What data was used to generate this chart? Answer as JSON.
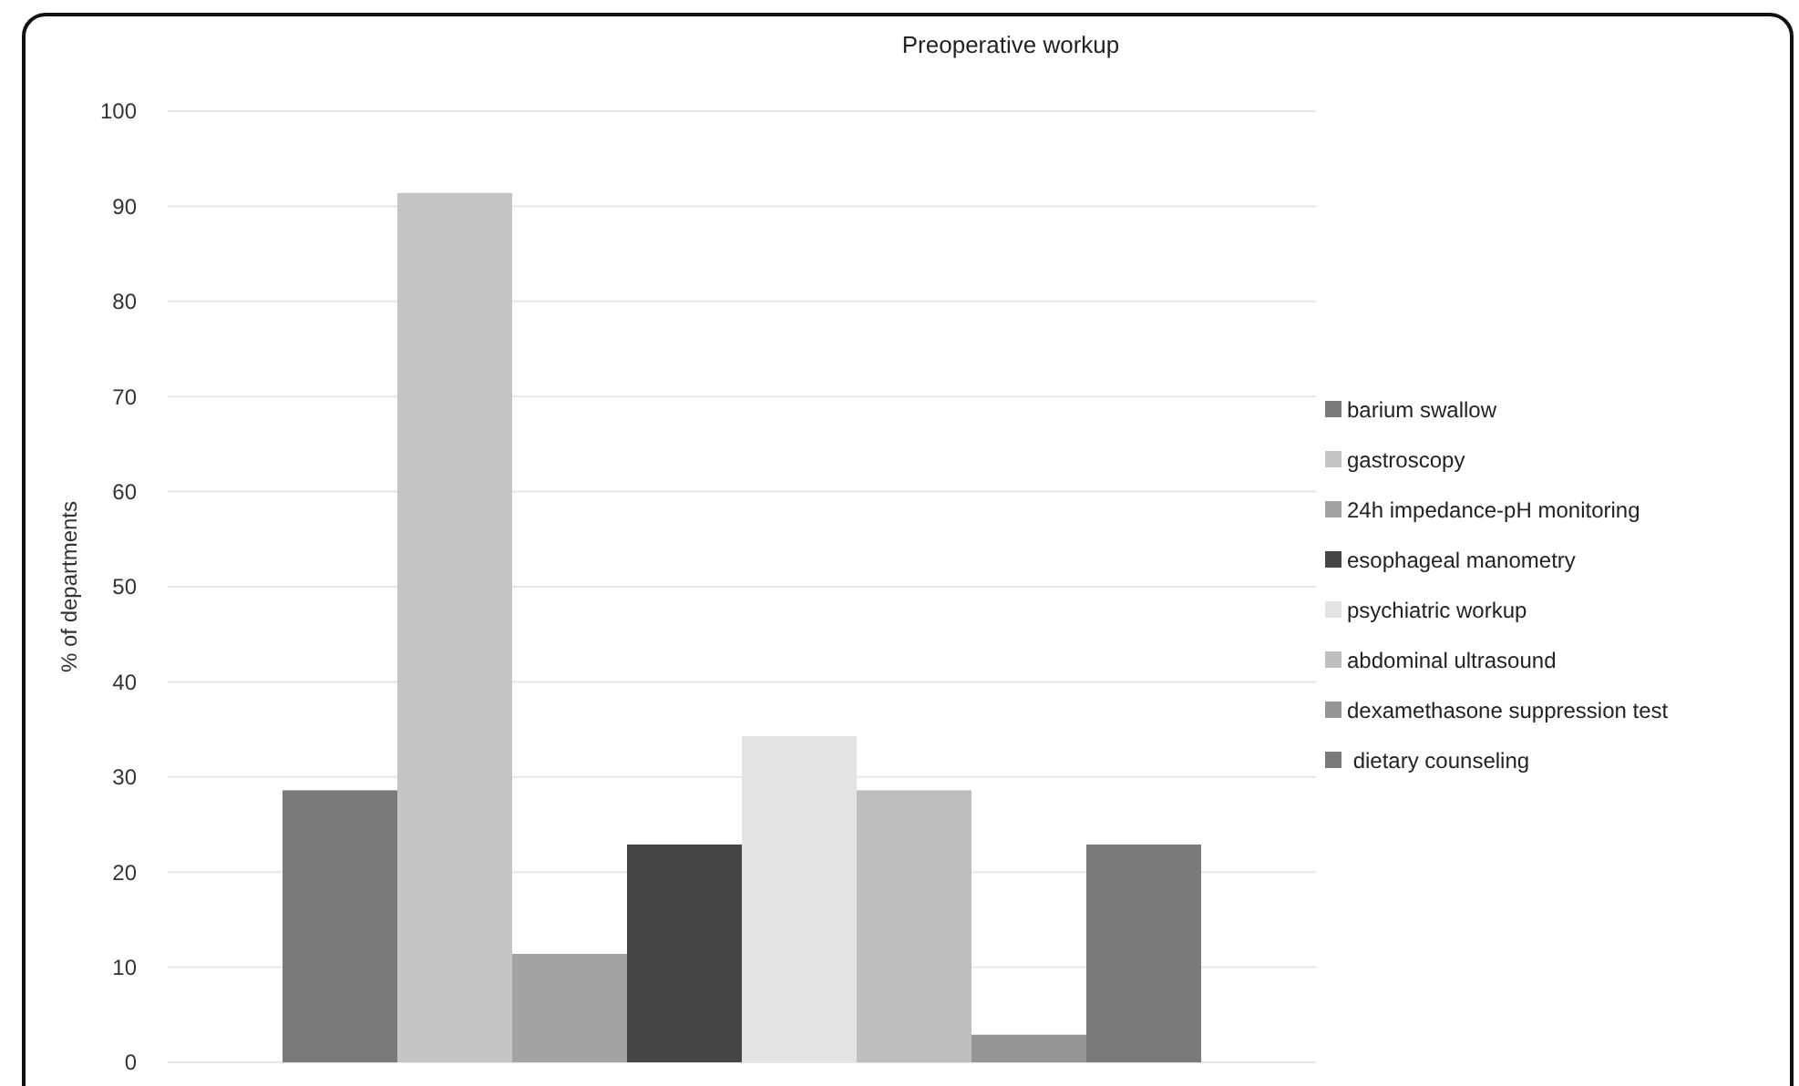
{
  "chart_data": {
    "type": "bar",
    "title": "Preoperative workup",
    "ylabel": "% of departments",
    "categories": [
      null
    ],
    "series": [
      {
        "name": "barium swallow",
        "color": "#7a7a7a",
        "values": [
          28.6
        ]
      },
      {
        "name": "gastroscopy",
        "color": "#c4c5c5",
        "values": [
          91.4
        ]
      },
      {
        "name": "24h impedance-pH monitoring",
        "color": "#a3a3a3",
        "values": [
          11.4
        ]
      },
      {
        "name": "esophageal manometry",
        "color": "#454543",
        "values": [
          22.9
        ]
      },
      {
        "name": "psychiatric workup",
        "color": "#e2e3e3",
        "values": [
          34.3
        ]
      },
      {
        "name": "abdominal ultrasound",
        "color": "#bdbfbf",
        "values": [
          28.6
        ]
      },
      {
        "name": "dexamethasone suppression test",
        "color": "#959595",
        "values": [
          2.9
        ]
      },
      {
        "name": " dietary counseling",
        "color": "#7a7a7a",
        "values": [
          22.9
        ]
      }
    ],
    "ylim": [
      0,
      100
    ],
    "yticks": [
      0,
      10,
      20,
      30,
      40,
      50,
      60,
      70,
      80,
      90,
      100
    ],
    "grid": "y",
    "legend": "right"
  }
}
